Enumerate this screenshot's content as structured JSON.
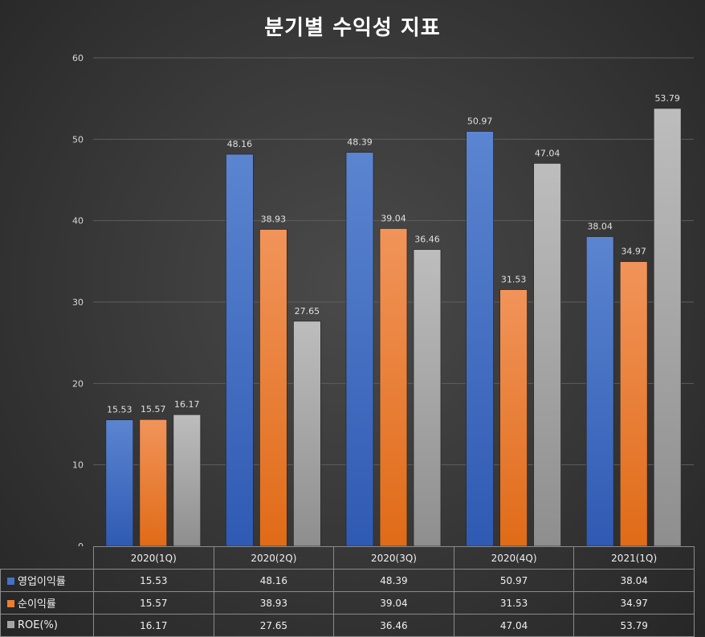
{
  "chart_data": {
    "type": "bar",
    "title": "분기별 수익성 지표",
    "categories": [
      "2020(1Q)",
      "2020(2Q)",
      "2020(3Q)",
      "2020(4Q)",
      "2021(1Q)"
    ],
    "series": [
      {
        "name": "영업이익률",
        "color": "#4472c4",
        "values": [
          15.53,
          48.16,
          48.39,
          50.97,
          38.04
        ]
      },
      {
        "name": "순이익률",
        "color": "#ed7d31",
        "values": [
          15.57,
          38.93,
          39.04,
          31.53,
          34.97
        ]
      },
      {
        "name": "ROE(%)",
        "color": "#a5a5a5",
        "values": [
          16.17,
          27.65,
          36.46,
          47.04,
          53.79
        ]
      }
    ],
    "ylim": [
      0,
      60
    ],
    "yticks": [
      0,
      10,
      20,
      30,
      40,
      50,
      60
    ],
    "grid": true,
    "legend": "data-table"
  }
}
